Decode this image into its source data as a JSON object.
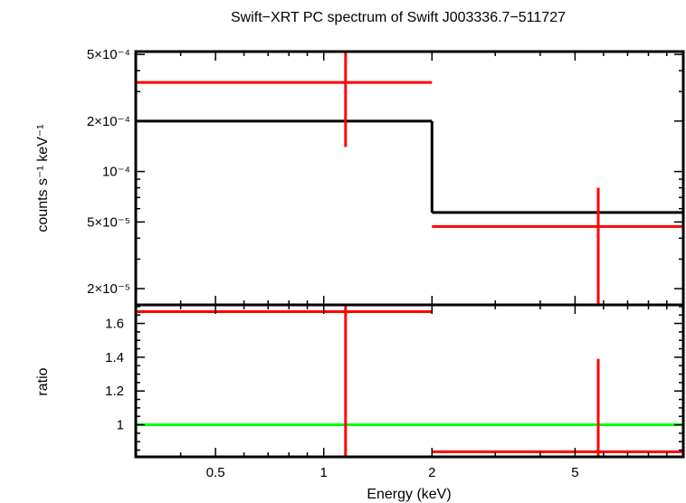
{
  "chart_data": [
    {
      "type": "line",
      "panel": "spectrum",
      "title": "Swift−XRT PC spectrum of Swift J003336.7−511727",
      "xlabel": "Energy (keV)",
      "ylabel": "counts s⁻¹ keV⁻¹",
      "xscale": "log",
      "yscale": "log",
      "xlim": [
        0.3,
        10
      ],
      "ylim": [
        1.6e-05,
        0.00052
      ],
      "xticks": [
        0.5,
        1,
        2,
        5
      ],
      "yticks": [
        {
          "value": 2e-05,
          "label": "2×10⁻⁵"
        },
        {
          "value": 5e-05,
          "label": "5×10⁻⁵"
        },
        {
          "value": 0.0001,
          "label": "10⁻⁴"
        },
        {
          "value": 0.0002,
          "label": "2×10⁻⁴"
        },
        {
          "value": 0.0005,
          "label": "5×10⁻⁴"
        }
      ],
      "series": [
        {
          "kind": "model-step",
          "color": "#000000",
          "bins": [
            {
              "x_lo": 0.3,
              "x_hi": 2.0,
              "y": 0.0002
            },
            {
              "x_lo": 2.0,
              "x_hi": 10.0,
              "y": 5.7e-05
            }
          ]
        },
        {
          "kind": "data-errorbars",
          "color": "#ff0000",
          "points": [
            {
              "x": 1.15,
              "x_lo": 0.3,
              "x_hi": 2.0,
              "y": 0.00034,
              "y_lo": 0.00014,
              "y_hi": 0.00052
            },
            {
              "x": 5.8,
              "x_lo": 2.0,
              "x_hi": 10.0,
              "y": 4.7e-05,
              "y_lo": 1.6e-05,
              "y_hi": 8e-05
            }
          ]
        }
      ]
    },
    {
      "type": "line",
      "panel": "ratio",
      "xlabel": "Energy (keV)",
      "ylabel": "ratio",
      "xscale": "log",
      "yscale": "linear",
      "xlim": [
        0.3,
        10
      ],
      "ylim": [
        0.81,
        1.71
      ],
      "xticks": [
        0.5,
        1,
        2,
        5
      ],
      "yticks": [
        1,
        1.2,
        1.4,
        1.6
      ],
      "series": [
        {
          "kind": "reference-line",
          "color": "#00ff00",
          "y": 1.0
        },
        {
          "kind": "data-errorbars",
          "color": "#ff0000",
          "points": [
            {
              "x": 1.15,
              "x_lo": 0.3,
              "x_hi": 2.0,
              "y": 1.67,
              "y_lo": 0.81,
              "y_hi": 1.71
            },
            {
              "x": 5.8,
              "x_lo": 2.0,
              "x_hi": 10.0,
              "y": 0.84,
              "y_lo": 0.81,
              "y_hi": 1.39
            }
          ]
        }
      ]
    }
  ]
}
